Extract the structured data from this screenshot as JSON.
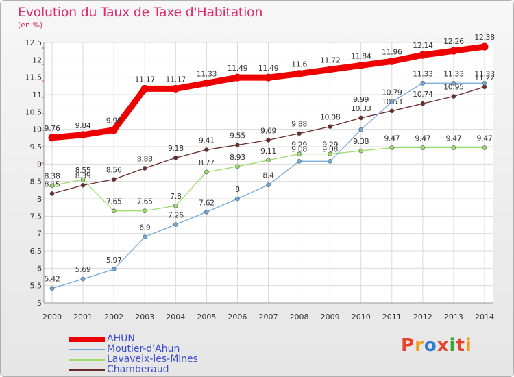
{
  "title": "Evolution du Taux de Taxe d'Habitation",
  "unit_label": "(en %)",
  "brand": "Proxiti",
  "brand_colors": [
    "#e8432a",
    "#f19b1b",
    "#2e7cd6",
    "#e8432a",
    "#3aa635",
    "#e8432a",
    "#f19b1b"
  ],
  "chart_data": {
    "type": "line",
    "x": [
      "2000",
      "2001",
      "2002",
      "2003",
      "2004",
      "2005",
      "2006",
      "2007",
      "2008",
      "2009",
      "2010",
      "2011",
      "2012",
      "2013",
      "2014"
    ],
    "ylim": [
      5,
      12.5
    ],
    "yticks": [
      "5",
      "5.5",
      "6",
      "6.5",
      "7",
      "7.5",
      "8",
      "8.5",
      "9",
      "9.5",
      "10",
      "10.5",
      "11",
      "11.5",
      "12",
      "12.5"
    ],
    "grid": true,
    "legend_position": "bottom-left",
    "series": [
      {
        "name": "AHUN",
        "color": "#ee0000",
        "values": [
          9.76,
          9.84,
          9.98,
          11.17,
          11.17,
          11.33,
          11.49,
          11.49,
          11.6,
          11.72,
          11.84,
          11.96,
          12.14,
          12.26,
          12.38
        ],
        "labels": [
          "9.76",
          "9.84",
          "9.98",
          "11.17",
          "11.17",
          "11.33",
          "11.49",
          "11.49",
          "11.6",
          "11.72",
          "11.84",
          "11.96",
          "12.14",
          "12.26",
          "12.38"
        ]
      },
      {
        "name": "Moutier-d'Ahun",
        "color": "#6fa8dc",
        "values": [
          5.42,
          5.69,
          5.97,
          6.9,
          7.26,
          7.62,
          8,
          8.4,
          9.08,
          9.08,
          9.99,
          10.79,
          11.33,
          11.33,
          11.33
        ],
        "labels": [
          "5.42",
          "5.69",
          "5.97",
          "6.9",
          "7.26",
          "7.62",
          "8",
          "8.4",
          "",
          "",
          "",
          "10.79",
          "11.33",
          "11.33",
          "11.33"
        ]
      },
      {
        "name": "Lavaveix-les-Mines",
        "color": "#99dd66",
        "values": [
          8.38,
          8.55,
          7.65,
          7.65,
          7.8,
          8.77,
          8.93,
          9.11,
          9.29,
          9.29,
          9.38,
          9.47,
          9.47,
          9.47,
          9.47
        ],
        "labels": [
          "8.38",
          "8.55",
          "7.65",
          "7.65",
          "7.8",
          "8.77",
          "8.93",
          "9.11",
          "9.29",
          "9.29",
          "9.38",
          "9.47",
          "9.47",
          "9.47",
          "9.47"
        ]
      },
      {
        "name": "Chamberaud",
        "color": "#6b2b2b",
        "values": [
          8.15,
          8.39,
          8.56,
          8.88,
          9.18,
          9.41,
          9.55,
          9.69,
          9.88,
          10.08,
          10.33,
          10.53,
          10.74,
          10.95,
          11.22
        ],
        "labels": [
          "8.15",
          "8.39",
          "8.56",
          "8.88",
          "9.18",
          "9.41",
          "9.55",
          "9.69",
          "9.88",
          "10.08",
          "10.33",
          "10.53",
          "10.74",
          "10.95",
          "11.22"
        ]
      }
    ],
    "overlap_labels": [
      "9.08",
      "9.08",
      "9.99"
    ]
  }
}
